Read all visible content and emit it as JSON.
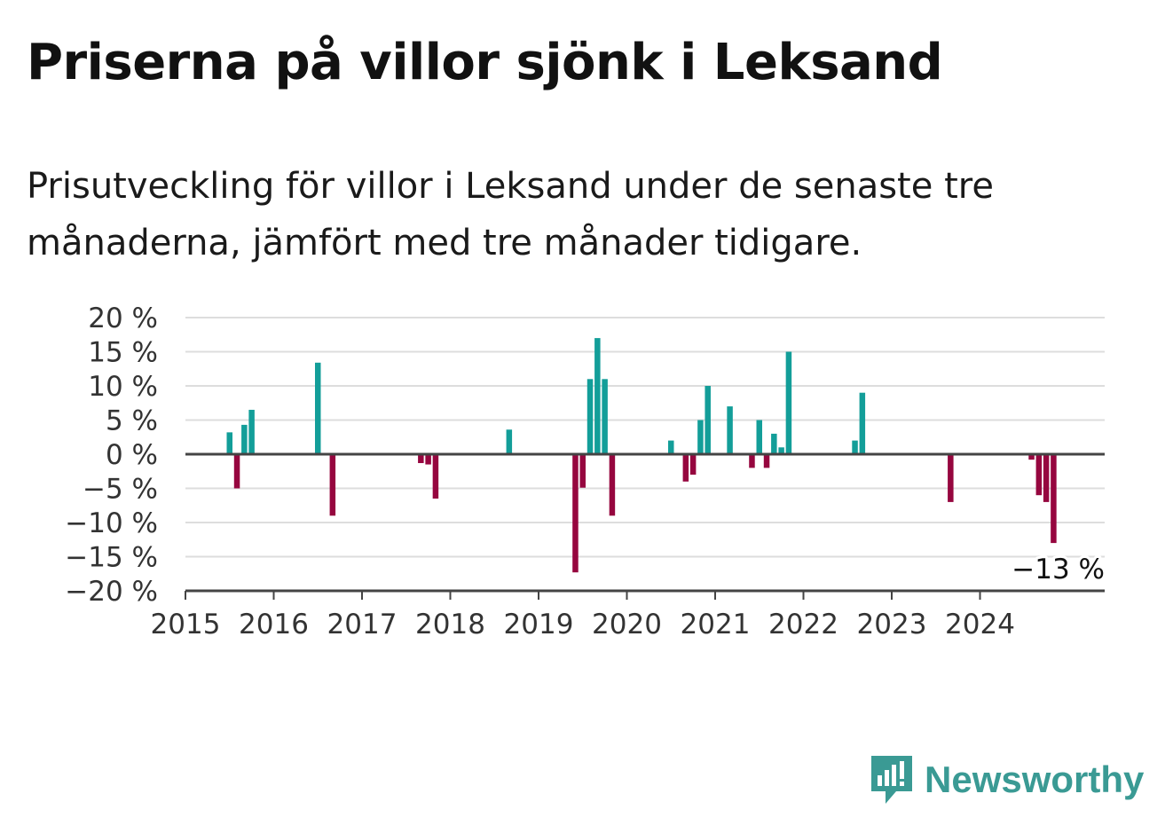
{
  "title": "Priserna på villor sjönk i Leksand",
  "subtitle": "Prisutveckling för villor i Leksand under de senaste tre månaderna, jämfört med tre månader tidigare.",
  "brand": {
    "name": "Newsworthy",
    "icon": "newsworthy-logo-icon",
    "color": "#3a9a94"
  },
  "colors": {
    "positive": "#139e99",
    "negative": "#96063f",
    "grid": "#dddddd",
    "axis": "#444444"
  },
  "chart_data": {
    "type": "bar",
    "title": "Priserna på villor sjönk i Leksand",
    "xlabel": "",
    "ylabel": "",
    "ylim": [
      -20,
      20
    ],
    "xlim": [
      "2015-01",
      "2025-06"
    ],
    "x_ticks": [
      "2015",
      "2016",
      "2017",
      "2018",
      "2019",
      "2020",
      "2021",
      "2022",
      "2023",
      "2024"
    ],
    "y_ticks": [
      {
        "value": 20,
        "label": "20 %"
      },
      {
        "value": 15,
        "label": "15 %"
      },
      {
        "value": 10,
        "label": "10 %"
      },
      {
        "value": 5,
        "label": "5 %"
      },
      {
        "value": 0,
        "label": "0 %"
      },
      {
        "value": -5,
        "label": "−5 %"
      },
      {
        "value": -10,
        "label": "−10 %"
      },
      {
        "value": -15,
        "label": "−15 %"
      },
      {
        "value": -20,
        "label": "−20 %"
      }
    ],
    "grid": true,
    "last_value_label": "−13 %",
    "series": [
      {
        "points": [
          {
            "x": "2015-07",
            "y": 3.2
          },
          {
            "x": "2015-08",
            "y": -5.0
          },
          {
            "x": "2015-09",
            "y": 4.3
          },
          {
            "x": "2015-10",
            "y": 6.5
          },
          {
            "x": "2016-07",
            "y": 13.4
          },
          {
            "x": "2016-09",
            "y": -9.0
          },
          {
            "x": "2017-09",
            "y": -1.3
          },
          {
            "x": "2017-10",
            "y": -1.5
          },
          {
            "x": "2017-11",
            "y": -6.5
          },
          {
            "x": "2018-09",
            "y": 3.6
          },
          {
            "x": "2019-06",
            "y": -17.3
          },
          {
            "x": "2019-07",
            "y": -4.9
          },
          {
            "x": "2019-08",
            "y": 11.0
          },
          {
            "x": "2019-09",
            "y": 17.0
          },
          {
            "x": "2019-10",
            "y": 11.0
          },
          {
            "x": "2019-11",
            "y": -9.0
          },
          {
            "x": "2020-07",
            "y": 2.0
          },
          {
            "x": "2020-09",
            "y": -4.0
          },
          {
            "x": "2020-10",
            "y": -3.0
          },
          {
            "x": "2020-11",
            "y": 5.0
          },
          {
            "x": "2020-12",
            "y": 10.0
          },
          {
            "x": "2021-03",
            "y": 7.0
          },
          {
            "x": "2021-06",
            "y": -2.0
          },
          {
            "x": "2021-07",
            "y": 5.0
          },
          {
            "x": "2021-08",
            "y": -2.0
          },
          {
            "x": "2021-09",
            "y": 3.0
          },
          {
            "x": "2021-10",
            "y": 1.0
          },
          {
            "x": "2021-11",
            "y": 15.0
          },
          {
            "x": "2022-08",
            "y": 2.0
          },
          {
            "x": "2022-09",
            "y": 9.0
          },
          {
            "x": "2023-09",
            "y": -7.0
          },
          {
            "x": "2024-08",
            "y": -0.8
          },
          {
            "x": "2024-09",
            "y": -6.0
          },
          {
            "x": "2024-10",
            "y": -7.0
          },
          {
            "x": "2024-11",
            "y": -13.0
          }
        ]
      }
    ]
  }
}
